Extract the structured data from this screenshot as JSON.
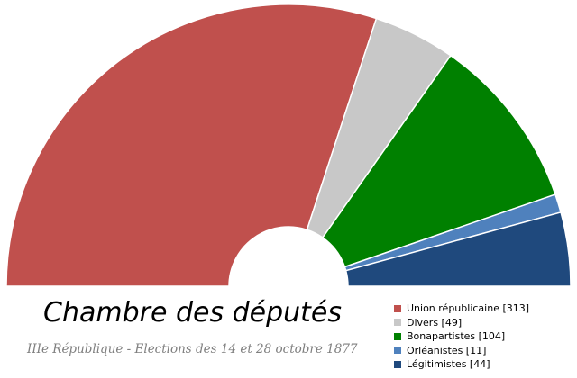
{
  "chart_data": {
    "type": "pie",
    "title": "Chambre des députés",
    "subtitle": "IIIe République - Elections des 14 et 28 octobre 1877",
    "layout": "hemicycle",
    "legend_position": "bottom-right",
    "series": [
      {
        "label": "Union républicaine [313]",
        "value": 313,
        "color": "#c0504d"
      },
      {
        "label": "Divers [49]",
        "value": 49,
        "color": "#c8c8c8"
      },
      {
        "label": "Bonapartistes [104]",
        "value": 104,
        "color": "#008000"
      },
      {
        "label": "Orléanistes [11]",
        "value": 11,
        "color": "#4f81bd"
      },
      {
        "label": "Légitimistes [44]",
        "value": 44,
        "color": "#1f497d"
      }
    ]
  }
}
